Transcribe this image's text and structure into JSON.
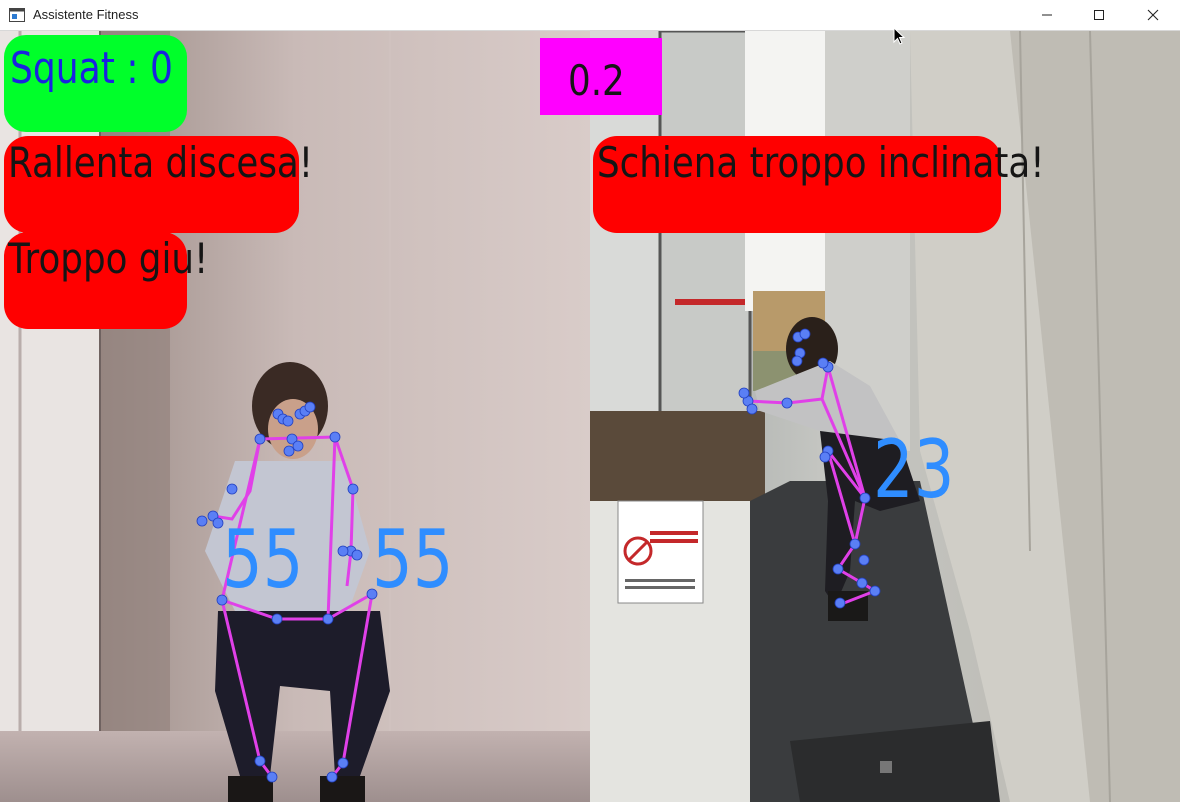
{
  "window": {
    "title": "Assistente Fitness",
    "icon": "app-window-icon",
    "controls": [
      "minimize-icon",
      "maximize-icon",
      "close-icon"
    ]
  },
  "overlay": {
    "squat_counter": "Squat : 0",
    "timer": "0.2",
    "feedback": [
      "Rallenta discesa!",
      "Troppo giu!",
      "Schiena troppo inclinata!"
    ],
    "left_view_angles": [
      "55",
      "55"
    ],
    "right_view_angle": "23"
  },
  "colors": {
    "counter_bg": "#00ff2a",
    "counter_text": "#1a23e0",
    "alert_bg": "#ff0000",
    "timer_bg": "#ff00ff",
    "skeleton_line": "#e040e8",
    "landmark": "#4a7cf0",
    "angle_text": "#2f8dff"
  }
}
